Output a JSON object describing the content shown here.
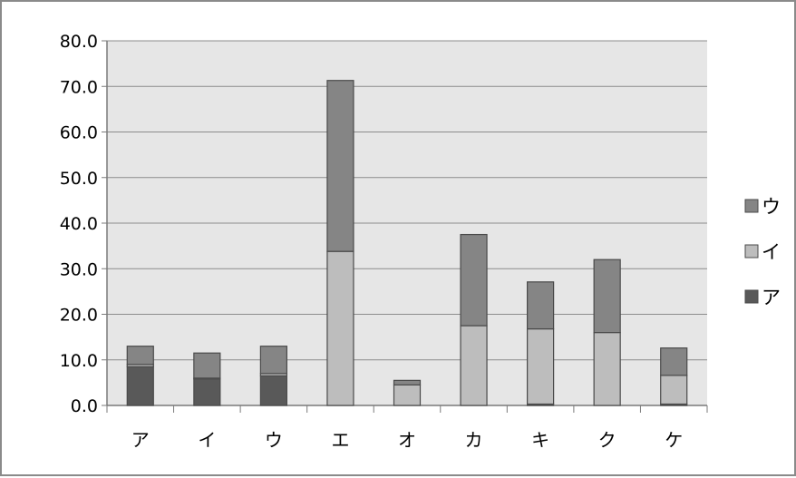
{
  "chart_data": {
    "type": "bar",
    "stacked": true,
    "categories": [
      "ア",
      "イ",
      "ウ",
      "エ",
      "オ",
      "カ",
      "キ",
      "ク",
      "ケ"
    ],
    "series": [
      {
        "name": "ア",
        "color": "#595959",
        "values": [
          8.5,
          5.8,
          6.5,
          0,
          0,
          0,
          0.3,
          0,
          0.3
        ]
      },
      {
        "name": "イ",
        "color": "#bdbdbd",
        "values": [
          0.5,
          0.2,
          0.5,
          33.8,
          4.5,
          17.5,
          16.5,
          16.0,
          6.3
        ]
      },
      {
        "name": "ウ",
        "color": "#858585",
        "values": [
          4.0,
          5.5,
          6.0,
          37.5,
          1.0,
          20.0,
          10.3,
          16.0,
          6.0
        ]
      }
    ],
    "ylim": [
      0,
      80
    ],
    "yticks": [
      "0.0",
      "10.0",
      "20.0",
      "30.0",
      "40.0",
      "50.0",
      "60.0",
      "70.0",
      "80.0"
    ],
    "grid": true,
    "legend_position": "right",
    "plot_background": "#e6e6e6"
  }
}
